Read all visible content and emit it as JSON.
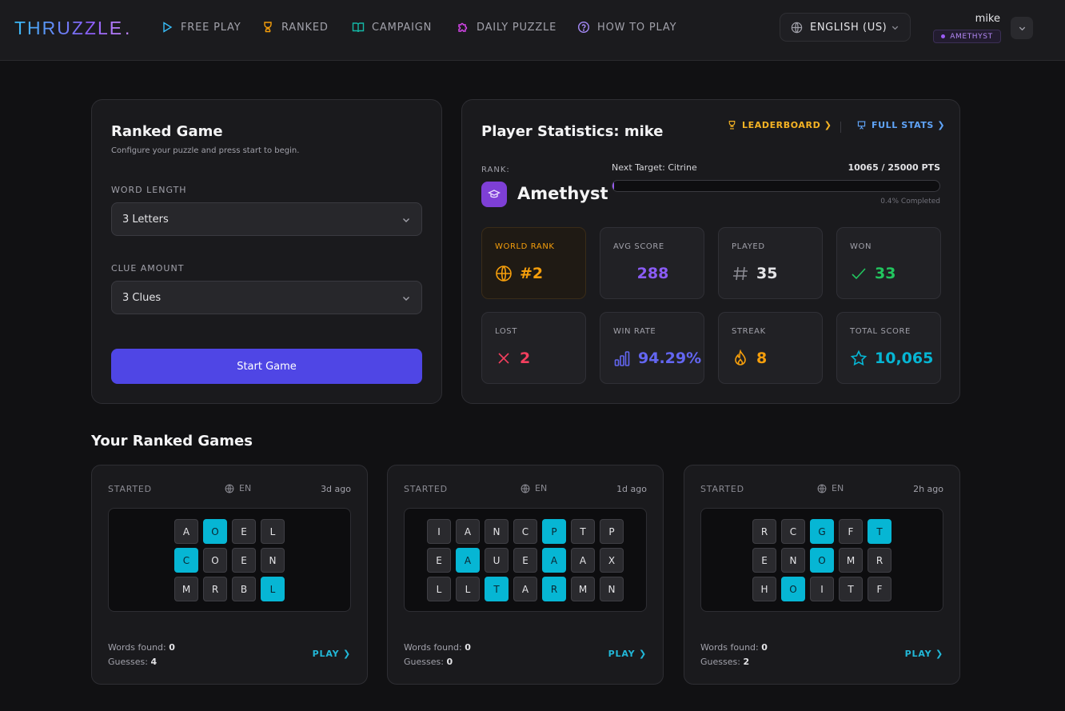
{
  "header": {
    "logo": "THRUZZLE",
    "logo_dot": ".",
    "nav": [
      {
        "label": "FREE PLAY",
        "icon": "play-icon"
      },
      {
        "label": "RANKED",
        "icon": "trophy-icon"
      },
      {
        "label": "CAMPAIGN",
        "icon": "book-icon"
      },
      {
        "label": "DAILY PUZZLE",
        "icon": "puzzle-icon"
      },
      {
        "label": "HOW TO PLAY",
        "icon": "help-circle-icon"
      }
    ],
    "language": "ENGLISH (US)",
    "user": {
      "name": "mike",
      "rank_badge": "AMETHYST"
    }
  },
  "ranked_game": {
    "title": "Ranked Game",
    "subtitle": "Configure your puzzle and press start to begin.",
    "word_length_label": "WORD LENGTH",
    "word_length_value": "3 Letters",
    "clue_amount_label": "CLUE AMOUNT",
    "clue_amount_value": "3 Clues",
    "start_button": "Start Game"
  },
  "player_stats": {
    "title": "Player Statistics: mike",
    "leaderboard_link": "LEADERBOARD ❯",
    "full_stats_link": "FULL STATS ❯",
    "rank_label": "RANK:",
    "rank_name": "Amethyst",
    "next_target": "Next Target: Citrine",
    "points": "10065 / 25000 PTS",
    "progress_fraction": 0.004,
    "progress_text": "0.4% Completed",
    "cards": [
      {
        "label": "WORLD RANK",
        "value": "#2",
        "icon": "globe-icon",
        "color": "#f59e0b"
      },
      {
        "label": "AVG SCORE",
        "value": "288",
        "icon": "",
        "color": "#8b5cf6"
      },
      {
        "label": "PLAYED",
        "value": "35",
        "icon": "hash-icon",
        "color": "#e4e4e7"
      },
      {
        "label": "WON",
        "value": "33",
        "icon": "check-icon",
        "color": "#22c55e"
      },
      {
        "label": "LOST",
        "value": "2",
        "icon": "x-icon",
        "color": "#f43f5e"
      },
      {
        "label": "WIN RATE",
        "value": "94.29%",
        "icon": "bar-chart-icon",
        "color": "#6366f1"
      },
      {
        "label": "STREAK",
        "value": "8",
        "icon": "flame-icon",
        "color": "#f59e0b"
      },
      {
        "label": "TOTAL SCORE",
        "value": "10,065",
        "icon": "star-icon",
        "color": "#06b6d4"
      }
    ]
  },
  "your_games": {
    "title": "Your Ranked Games",
    "words_found_label": "Words found:",
    "guesses_label": "Guesses:",
    "play_label": "PLAY ❯",
    "games": [
      {
        "status": "STARTED",
        "language": "EN",
        "ago": "3d ago",
        "words_found": "0",
        "guesses": "4",
        "rows": [
          [
            "A",
            "O",
            "E",
            "L"
          ],
          [
            "C",
            "O",
            "E",
            "N"
          ],
          [
            "M",
            "R",
            "B",
            "L"
          ]
        ],
        "highlight": [
          [
            1
          ],
          [
            0
          ],
          [
            3
          ]
        ]
      },
      {
        "status": "STARTED",
        "language": "EN",
        "ago": "1d ago",
        "words_found": "0",
        "guesses": "0",
        "rows": [
          [
            "I",
            "A",
            "N",
            "C",
            "P",
            "T",
            "P"
          ],
          [
            "E",
            "A",
            "U",
            "E",
            "A",
            "A",
            "X"
          ],
          [
            "L",
            "L",
            "T",
            "A",
            "R",
            "M",
            "N"
          ]
        ],
        "highlight": [
          [
            4
          ],
          [
            1,
            4
          ],
          [
            2,
            4
          ]
        ]
      },
      {
        "status": "STARTED",
        "language": "EN",
        "ago": "2h ago",
        "words_found": "0",
        "guesses": "2",
        "rows": [
          [
            "R",
            "C",
            "G",
            "F",
            "T"
          ],
          [
            "E",
            "N",
            "O",
            "M",
            "R"
          ],
          [
            "H",
            "O",
            "I",
            "T",
            "F"
          ]
        ],
        "highlight": [
          [
            2,
            4
          ],
          [
            2
          ],
          [
            1
          ]
        ]
      }
    ]
  }
}
